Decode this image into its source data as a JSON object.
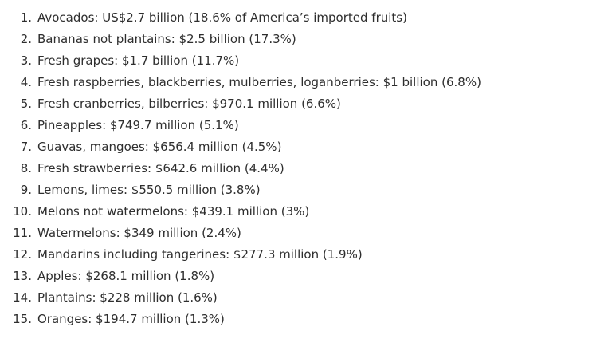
{
  "list": {
    "items": [
      {
        "number": "1.",
        "text": "Avocados: US$2.7 billion (18.6% of America’s imported fruits)"
      },
      {
        "number": "2.",
        "text": "Bananas not plantains: $2.5 billion (17.3%)"
      },
      {
        "number": "3.",
        "text": "Fresh grapes: $1.7 billion (11.7%)"
      },
      {
        "number": "4.",
        "text": "Fresh raspberries, blackberries, mulberries, loganberries: $1 billion (6.8%)"
      },
      {
        "number": "5.",
        "text": "Fresh cranberries, bilberries: $970.1 million (6.6%)"
      },
      {
        "number": "6.",
        "text": "Pineapples: $749.7 million (5.1%)"
      },
      {
        "number": "7.",
        "text": "Guavas, mangoes: $656.4 million (4.5%)"
      },
      {
        "number": "8.",
        "text": "Fresh strawberries: $642.6 million (4.4%)"
      },
      {
        "number": "9.",
        "text": "Lemons, limes: $550.5 million (3.8%)"
      },
      {
        "number": "10.",
        "text": "Melons not watermelons: $439.1 million (3%)"
      },
      {
        "number": "11.",
        "text": "Watermelons: $349 million (2.4%)"
      },
      {
        "number": "12.",
        "text": "Mandarins including tangerines: $277.3 million (1.9%)"
      },
      {
        "number": "13.",
        "text": "Apples: $268.1 million (1.8%)"
      },
      {
        "number": "14.",
        "text": "Plantains: $228 million (1.6%)"
      },
      {
        "number": "15.",
        "text": "Oranges: $194.7 million (1.3%)"
      }
    ]
  }
}
